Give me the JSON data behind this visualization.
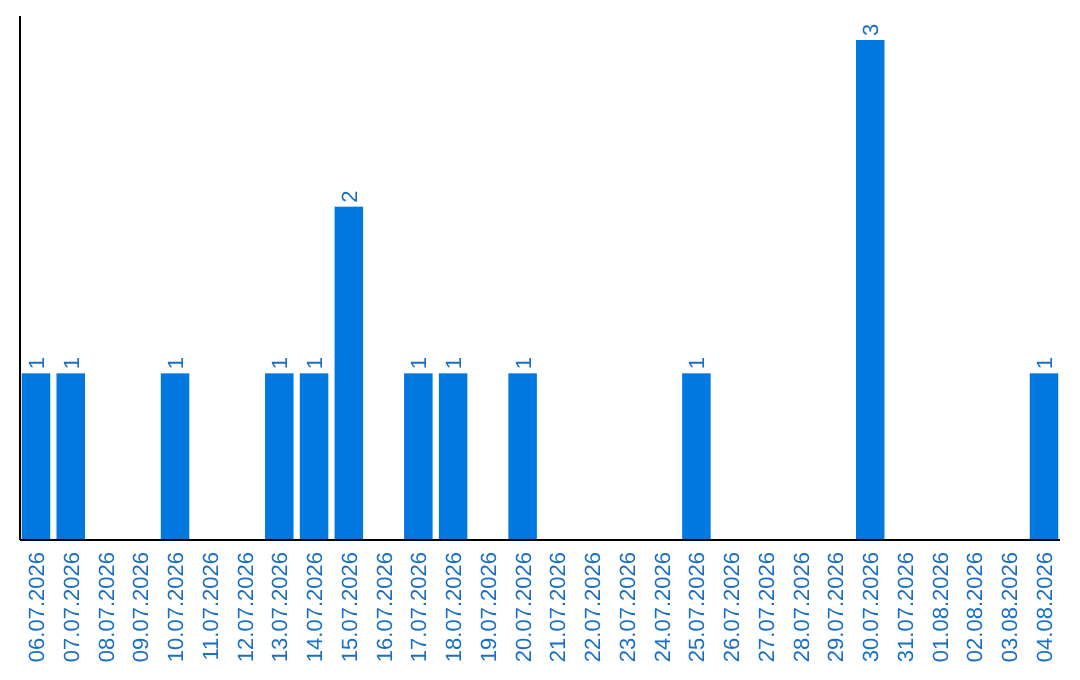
{
  "chart_data": {
    "type": "bar",
    "categories": [
      "06.07.2026",
      "07.07.2026",
      "08.07.2026",
      "09.07.2026",
      "10.07.2026",
      "11.07.2026",
      "12.07.2026",
      "13.07.2026",
      "14.07.2026",
      "15.07.2026",
      "16.07.2026",
      "17.07.2026",
      "18.07.2026",
      "19.07.2026",
      "20.07.2026",
      "21.07.2026",
      "22.07.2026",
      "23.07.2026",
      "24.07.2026",
      "25.07.2026",
      "26.07.2026",
      "27.07.2026",
      "28.07.2026",
      "29.07.2026",
      "30.07.2026",
      "31.07.2026",
      "01.08.2026",
      "02.08.2026",
      "03.08.2026",
      "04.08.2026"
    ],
    "values": [
      1,
      1,
      0,
      0,
      1,
      0,
      0,
      1,
      1,
      2,
      0,
      1,
      1,
      0,
      1,
      0,
      0,
      0,
      0,
      1,
      0,
      0,
      0,
      0,
      3,
      0,
      0,
      0,
      0,
      1
    ],
    "value_labels": [
      "1",
      "1",
      null,
      null,
      "1",
      null,
      null,
      "1",
      "1",
      "2",
      null,
      "1",
      "1",
      null,
      "1",
      null,
      null,
      null,
      null,
      "1",
      null,
      null,
      null,
      null,
      "3",
      null,
      null,
      null,
      null,
      "1"
    ],
    "color": "#0078e0",
    "tick_labels": "x",
    "grid": false
  }
}
